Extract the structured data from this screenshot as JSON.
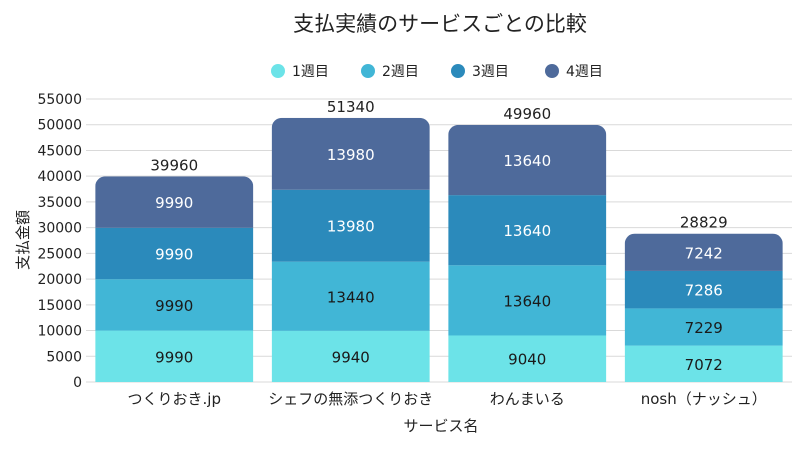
{
  "chart_data": {
    "type": "bar",
    "stacked": true,
    "title": "支払実績のサービスごとの比較",
    "xlabel": "サービス名",
    "ylabel": "支払金額",
    "ylim": [
      0,
      55000
    ],
    "yticks": [
      0,
      5000,
      10000,
      15000,
      20000,
      25000,
      30000,
      35000,
      40000,
      45000,
      50000,
      55000
    ],
    "grid": true,
    "legend_position": "top",
    "categories": [
      "つくりおき.jp",
      "シェフの無添つくりおき",
      "わんまいる",
      "nosh（ナッシュ）"
    ],
    "series": [
      {
        "name": "1週目",
        "color": "#6ce3e8",
        "label_color": "#1a1a1a",
        "values": [
          9990,
          9940,
          9040,
          7072
        ]
      },
      {
        "name": "2週目",
        "color": "#41b6d6",
        "label_color": "#1a1a1a",
        "values": [
          9990,
          13440,
          13640,
          7229
        ]
      },
      {
        "name": "3週目",
        "color": "#2b8abb",
        "label_color": "#ffffff",
        "values": [
          9990,
          13980,
          13640,
          7286
        ]
      },
      {
        "name": "4週目",
        "color": "#4e6a9b",
        "label_color": "#ffffff",
        "values": [
          9990,
          13980,
          13640,
          7242
        ]
      }
    ],
    "totals": [
      39960,
      51340,
      49960,
      28829
    ]
  }
}
